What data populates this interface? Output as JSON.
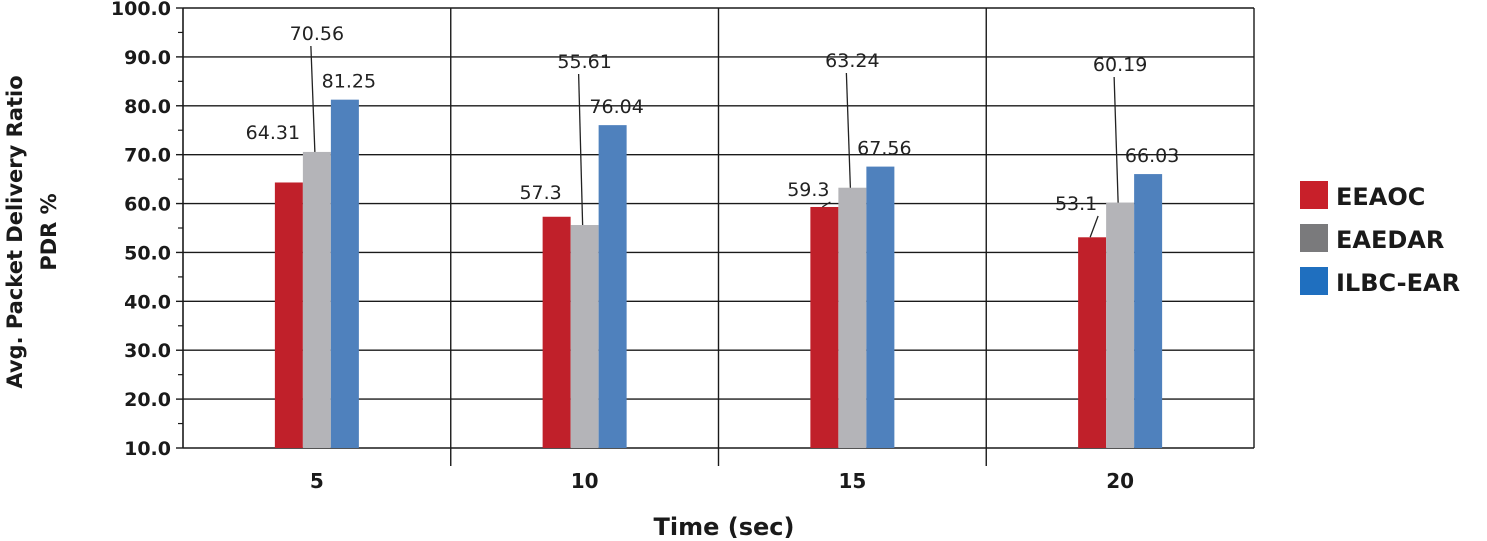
{
  "chart_data": {
    "type": "bar",
    "title": "",
    "xlabel": "Time (sec)",
    "ylabel_line1": "Avg. Packet Delivery Ratio",
    "ylabel_line2": "PDR %",
    "categories": [
      "5",
      "10",
      "15",
      "20"
    ],
    "ylim": [
      10,
      100
    ],
    "yticks": [
      "10.0",
      "20.0",
      "30.0",
      "40.0",
      "50.0",
      "60.0",
      "70.0",
      "80.0",
      "90.0",
      "100.0"
    ],
    "grid": true,
    "legend_position": "right",
    "series": [
      {
        "name": "EEAOC",
        "color": "#c0202a",
        "legend_color": "#c8202a",
        "values": [
          64.31,
          57.3,
          59.3,
          53.1
        ],
        "labels": [
          "64.31",
          "57.3",
          "59.3",
          "53.1"
        ]
      },
      {
        "name": "EAEDAR",
        "color": "#b4b4b8",
        "legend_color": "#7a7a7c",
        "values": [
          70.56,
          55.61,
          63.24,
          60.19
        ],
        "labels": [
          "70.56",
          "55.61",
          "63.24",
          "60.19"
        ]
      },
      {
        "name": "ILBC-EAR",
        "color": "#4f81bd",
        "legend_color": "#1f6fbf",
        "values": [
          81.25,
          76.04,
          67.56,
          66.03
        ],
        "labels": [
          "81.25",
          "76.04",
          "67.56",
          "66.03"
        ]
      }
    ]
  }
}
